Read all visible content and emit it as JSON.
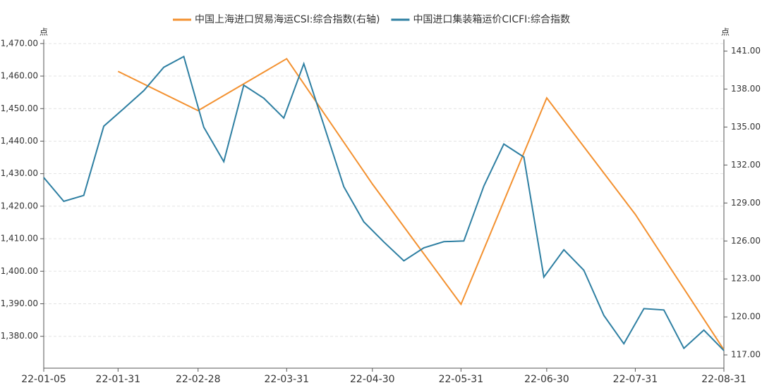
{
  "chart_data": {
    "type": "line",
    "left_unit": "点",
    "right_unit": "点",
    "xlim": [
      "22-01-05",
      "22-08-31"
    ],
    "xticks": [
      "22-01-05",
      "22-01-31",
      "22-02-28",
      "22-03-31",
      "22-04-30",
      "22-05-31",
      "22-06-30",
      "22-07-31",
      "22-08-31"
    ],
    "ylim": [
      1370.2,
      1470.4
    ],
    "yticks": [
      {
        "value": 1380,
        "label": "1,380.00"
      },
      {
        "value": 1390,
        "label": "1,390.00"
      },
      {
        "value": 1400,
        "label": "1,400.00"
      },
      {
        "value": 1410,
        "label": "1,410.00"
      },
      {
        "value": 1420,
        "label": "1,420.00"
      },
      {
        "value": 1430,
        "label": "1,430.00"
      },
      {
        "value": 1440,
        "label": "1,440.00"
      },
      {
        "value": 1450,
        "label": "1,450.00"
      },
      {
        "value": 1460,
        "label": "1,460.00"
      },
      {
        "value": 1470,
        "label": "1,470.00"
      }
    ],
    "y2lim": [
      115.95,
      141.7
    ],
    "y2ticks": [
      {
        "value": 117,
        "label": "117.00"
      },
      {
        "value": 120,
        "label": "120.00"
      },
      {
        "value": 123,
        "label": "123.00"
      },
      {
        "value": 126,
        "label": "126.00"
      },
      {
        "value": 129,
        "label": "129.00"
      },
      {
        "value": 132,
        "label": "132.00"
      },
      {
        "value": 135,
        "label": "135.00"
      },
      {
        "value": 138,
        "label": "138.00"
      },
      {
        "value": 141,
        "label": "141.00"
      }
    ],
    "grid": true,
    "legend": "top",
    "series": [
      {
        "name": "中国上海进口贸易海运CSI:综合指数(右轴)",
        "color": "#f39130",
        "axis": "y2",
        "x": [
          "22-01-31",
          "22-02-28",
          "22-03-31",
          "22-04-30",
          "22-05-31",
          "22-06-30",
          "22-07-31",
          "22-08-31"
        ],
        "values": [
          139.4,
          136.3,
          140.4,
          130.5,
          121.0,
          137.3,
          128.1,
          117.4
        ]
      },
      {
        "name": "中国进口集装箱运价CICFI:综合指数",
        "color": "#2e7fa2",
        "x": [
          "22-01-05",
          "22-01-12",
          "22-01-19",
          "22-01-26",
          "22-02-02",
          "22-02-09",
          "22-02-16",
          "22-02-23",
          "22-03-02",
          "22-03-09",
          "22-03-16",
          "22-03-23",
          "22-03-30",
          "22-04-06",
          "22-04-13",
          "22-04-20",
          "22-04-27",
          "22-05-04",
          "22-05-11",
          "22-05-18",
          "22-05-25",
          "22-06-01",
          "22-06-08",
          "22-06-15",
          "22-06-22",
          "22-06-29",
          "22-07-06",
          "22-07-13",
          "22-07-20",
          "22-07-27",
          "22-08-03",
          "22-08-10",
          "22-08-17",
          "22-08-24",
          "22-08-31"
        ],
        "values": [
          1428.8,
          1421.5,
          1423.3,
          1444.6,
          1450.0,
          1455.5,
          1462.7,
          1466.0,
          1444.3,
          1433.7,
          1457.2,
          1453.2,
          1447.1,
          1463.8,
          1445.0,
          1426.0,
          1415.2,
          1409.0,
          1403.2,
          1407.2,
          1409.1,
          1409.3,
          1426.2,
          1439.1,
          1435.1,
          1398.2,
          1406.6,
          1400.3,
          1386.4,
          1377.7,
          1388.5,
          1388.1,
          1376.3,
          1381.9,
          1375.6
        ]
      }
    ]
  }
}
